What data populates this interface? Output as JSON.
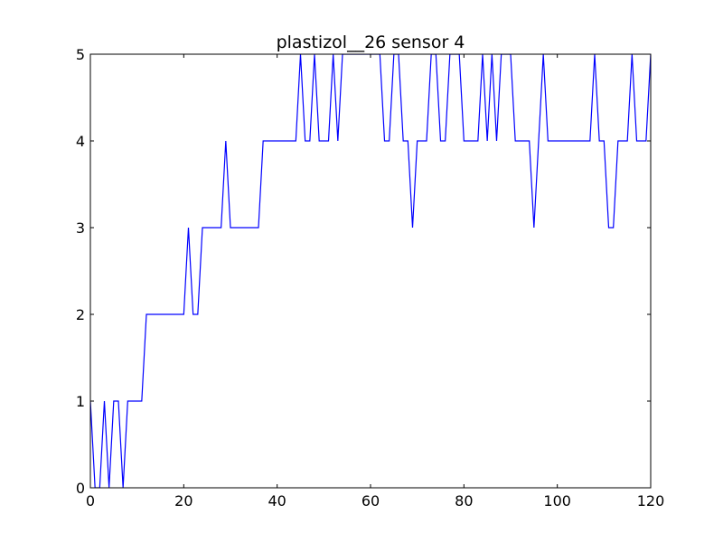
{
  "chart_data": {
    "type": "line",
    "title": "plastizol__26 sensor 4",
    "xlabel": "",
    "ylabel": "",
    "xlim": [
      0,
      120
    ],
    "ylim": [
      0,
      5
    ],
    "xticks": [
      0,
      20,
      40,
      60,
      80,
      100,
      120
    ],
    "yticks": [
      0,
      1,
      2,
      3,
      4,
      5
    ],
    "grid": false,
    "legend": "none",
    "series": [
      {
        "color": "#0000ff",
        "x": [
          0,
          1,
          2,
          3,
          4,
          5,
          6,
          7,
          8,
          9,
          10,
          11,
          12,
          13,
          14,
          15,
          16,
          17,
          18,
          19,
          20,
          21,
          22,
          23,
          24,
          25,
          26,
          27,
          28,
          29,
          30,
          31,
          32,
          33,
          34,
          35,
          36,
          37,
          38,
          39,
          40,
          41,
          42,
          43,
          44,
          45,
          46,
          47,
          48,
          49,
          50,
          51,
          52,
          53,
          54,
          55,
          56,
          57,
          58,
          59,
          60,
          61,
          62,
          63,
          64,
          65,
          66,
          67,
          68,
          69,
          70,
          71,
          72,
          73,
          74,
          75,
          76,
          77,
          78,
          79,
          80,
          81,
          82,
          83,
          84,
          85,
          86,
          87,
          88,
          89,
          90,
          91,
          92,
          93,
          94,
          95,
          96,
          97,
          98,
          99,
          100,
          101,
          102,
          103,
          104,
          105,
          106,
          107,
          108,
          109,
          110,
          111,
          112,
          113,
          114,
          115,
          116,
          117,
          118,
          119,
          120
        ],
        "y": [
          1,
          0,
          0,
          1,
          0,
          1,
          1,
          0,
          1,
          1,
          1,
          1,
          2,
          2,
          2,
          2,
          2,
          2,
          2,
          2,
          2,
          3,
          2,
          2,
          3,
          3,
          3,
          3,
          3,
          4,
          3,
          3,
          3,
          3,
          3,
          3,
          3,
          4,
          4,
          4,
          4,
          4,
          4,
          4,
          4,
          5,
          4,
          4,
          5,
          4,
          4,
          4,
          5,
          4,
          5,
          5,
          5,
          5,
          5,
          5,
          5,
          5,
          5,
          4,
          4,
          5,
          5,
          4,
          4,
          3,
          4,
          4,
          4,
          5,
          5,
          4,
          4,
          5,
          5,
          5,
          4,
          4,
          4,
          4,
          5,
          4,
          5,
          4,
          5,
          5,
          5,
          4,
          4,
          4,
          4,
          3,
          4,
          5,
          4,
          4,
          4,
          4,
          4,
          4,
          4,
          4,
          4,
          4,
          5,
          4,
          4,
          3,
          3,
          4,
          4,
          4,
          5,
          4,
          4,
          4,
          5
        ]
      }
    ]
  }
}
